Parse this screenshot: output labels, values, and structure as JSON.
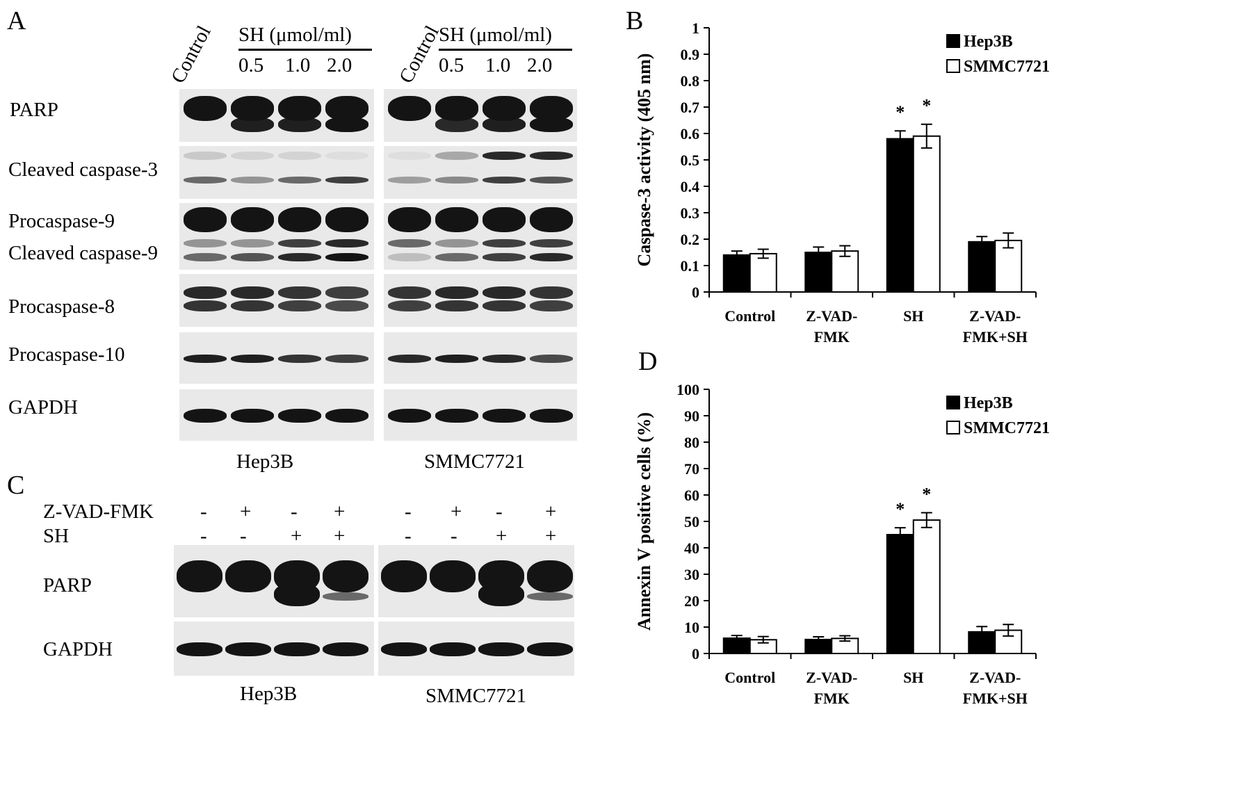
{
  "panelA": {
    "label": "A",
    "control_label": "Control",
    "treatment_header": "SH (μmol/ml)",
    "doses": [
      "0.5",
      "1.0",
      "2.0"
    ],
    "blot_rows": [
      "PARP",
      "Cleaved caspase-3",
      "Procaspase-9",
      "Cleaved caspase-9",
      "Procaspase-8",
      "Procaspase-10",
      "GAPDH"
    ],
    "cell_lines": [
      "Hep3B",
      "SMMC7721"
    ]
  },
  "panelC": {
    "label": "C",
    "row_labels": [
      "Z-VAD-FMK",
      "SH"
    ],
    "zvad_signs": [
      "-",
      "+",
      "-",
      "+",
      "-",
      "+",
      "-",
      "+"
    ],
    "sh_signs": [
      "-",
      "-",
      "+",
      "+",
      "-",
      "-",
      "+",
      "+"
    ],
    "blot_rows": [
      "PARP",
      "GAPDH"
    ],
    "cell_lines": [
      "Hep3B",
      "SMMC7721"
    ]
  },
  "chart_data": [
    {
      "panel": "B",
      "type": "bar",
      "title": "",
      "ylabel": "Caspase-3 activity (405 nm)",
      "xlabel": "",
      "categories": [
        [
          "Control"
        ],
        [
          "Z-VAD-",
          "FMK"
        ],
        [
          "SH"
        ],
        [
          "Z-VAD-",
          "FMK+SH"
        ]
      ],
      "ylim": [
        0,
        1
      ],
      "yticks": [
        "0",
        "0.1",
        "0.2",
        "0.3",
        "0.4",
        "0.5",
        "0.6",
        "0.7",
        "0.8",
        "0.9",
        "1"
      ],
      "series": [
        {
          "name": "Hep3B",
          "color": "#000000",
          "values": [
            0.14,
            0.15,
            0.58,
            0.19
          ],
          "errors": [
            0.015,
            0.02,
            0.03,
            0.02
          ]
        },
        {
          "name": "SMMC7721",
          "color": "#ffffff",
          "values": [
            0.145,
            0.155,
            0.59,
            0.195
          ],
          "errors": [
            0.017,
            0.02,
            0.045,
            0.028
          ]
        }
      ],
      "significance": [
        {
          "category": 2,
          "series": 0,
          "mark": "*"
        },
        {
          "category": 2,
          "series": 1,
          "mark": "*"
        }
      ],
      "legend": "top-right"
    },
    {
      "panel": "D",
      "type": "bar",
      "title": "",
      "ylabel": "Annexin V positive cells (%)",
      "xlabel": "",
      "categories": [
        [
          "Control"
        ],
        [
          "Z-VAD-",
          "FMK"
        ],
        [
          "SH"
        ],
        [
          "Z-VAD-",
          "FMK+SH"
        ]
      ],
      "ylim": [
        0,
        100
      ],
      "yticks": [
        "0",
        "10",
        "20",
        "30",
        "40",
        "50",
        "60",
        "70",
        "80",
        "90",
        "100"
      ],
      "series": [
        {
          "name": "Hep3B",
          "color": "#000000",
          "values": [
            5.8,
            5.3,
            45,
            8.2
          ],
          "errors": [
            1.0,
            1.0,
            2.6,
            2.0
          ]
        },
        {
          "name": "SMMC7721",
          "color": "#ffffff",
          "values": [
            5.2,
            5.7,
            50.5,
            8.8
          ],
          "errors": [
            1.2,
            1.0,
            2.8,
            2.2
          ]
        }
      ],
      "significance": [
        {
          "category": 2,
          "series": 0,
          "mark": "*"
        },
        {
          "category": 2,
          "series": 1,
          "mark": "*"
        }
      ],
      "legend": "top-right"
    }
  ]
}
